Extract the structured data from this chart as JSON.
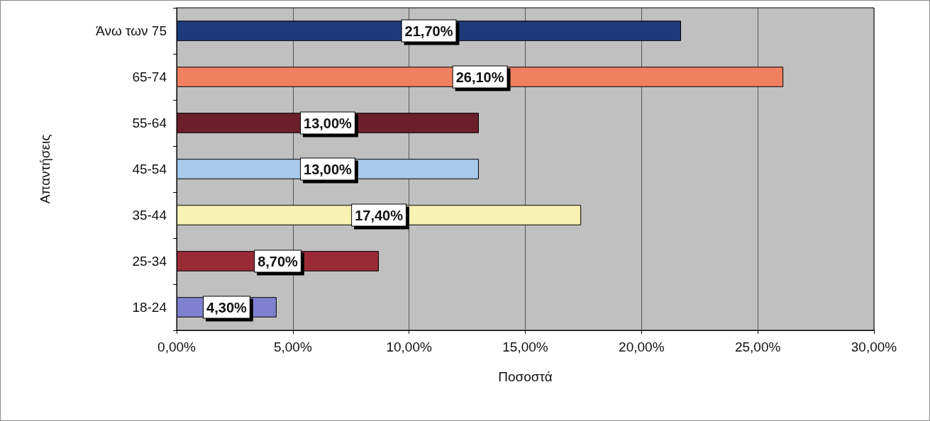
{
  "chart_data": {
    "type": "bar",
    "orientation": "horizontal",
    "xlabel": "Ποσοστά",
    "ylabel": "Απαντήσεις",
    "categories": [
      "Άνω των 75",
      "65-74",
      "55-64",
      "45-54",
      "35-44",
      "25-34",
      "18-24"
    ],
    "values": [
      21.7,
      26.1,
      13.0,
      13.0,
      17.4,
      8.7,
      4.3
    ],
    "colors": [
      "#1f3a7a",
      "#f0805f",
      "#6b1f2c",
      "#a9c9ea",
      "#f7f1b3",
      "#9a2b36",
      "#8080d0"
    ],
    "value_labels": [
      "21,70%",
      "26,10%",
      "13,00%",
      "13,00%",
      "17,40%",
      "8,70%",
      "4,30%"
    ],
    "xlim": [
      0,
      30
    ],
    "xticks": [
      {
        "value": 0,
        "label": "0,00%"
      },
      {
        "value": 5,
        "label": "5,00%"
      },
      {
        "value": 10,
        "label": "10,00%"
      },
      {
        "value": 15,
        "label": "15,00%"
      },
      {
        "value": 20,
        "label": "20,00%"
      },
      {
        "value": 25,
        "label": "25,00%"
      },
      {
        "value": 30,
        "label": "30,00%"
      }
    ],
    "grid": "x"
  }
}
